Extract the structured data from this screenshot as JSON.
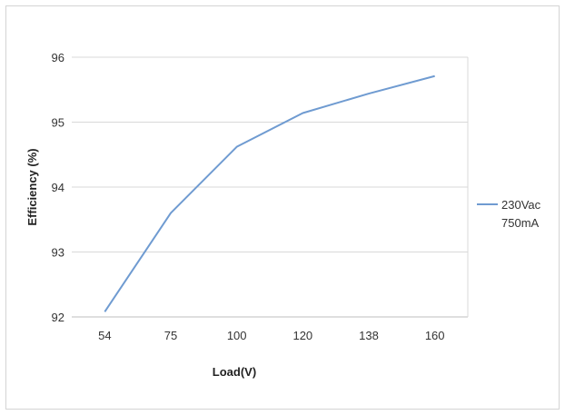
{
  "chart_data": {
    "type": "line",
    "categories": [
      "54",
      "75",
      "100",
      "120",
      "138",
      "160"
    ],
    "series": [
      {
        "name_line1": "230Vac",
        "name_line2": "750mA",
        "values": [
          92.08,
          93.6,
          94.62,
          95.14,
          95.44,
          95.71
        ],
        "color": "#6f9bd1"
      }
    ],
    "title": "",
    "xlabel": "Load(V)",
    "ylabel": "Efficiency (%)",
    "ylim": [
      92,
      96
    ],
    "yticks": [
      "92",
      "93",
      "94",
      "95",
      "96"
    ],
    "grid": true,
    "legend_position": "right"
  }
}
